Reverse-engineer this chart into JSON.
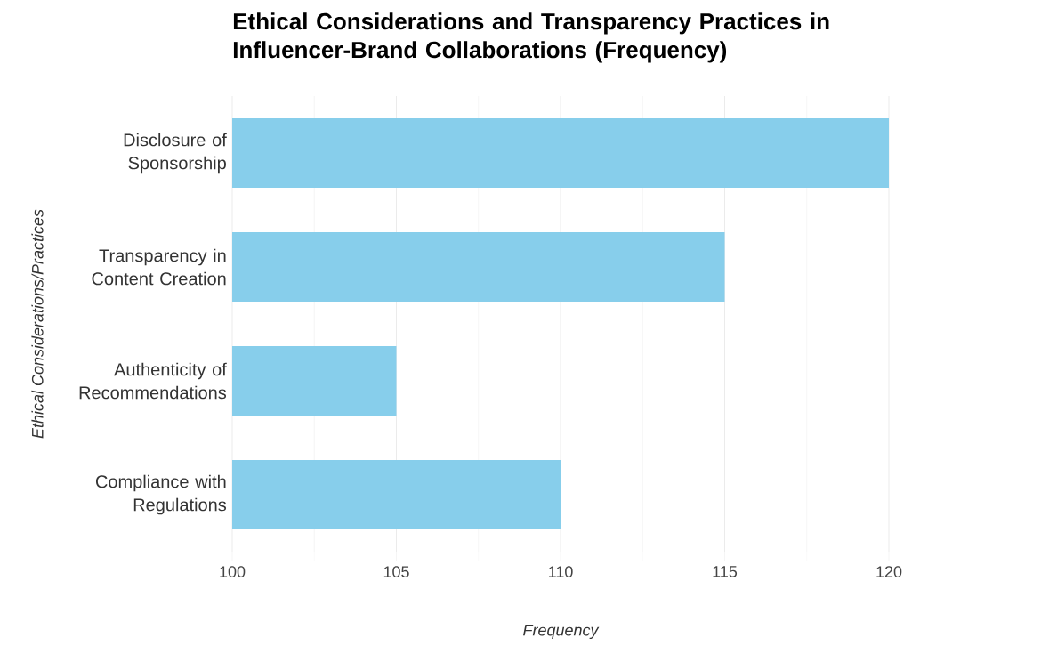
{
  "chart_data": {
    "type": "bar",
    "orientation": "horizontal",
    "title": "Ethical Considerations and Transparency Practices in Influencer-Brand Collaborations (Frequency)",
    "xlabel": "Frequency",
    "ylabel": "Ethical Considerations/Practices",
    "categories": [
      "Disclosure of Sponsorship",
      "Transparency in Content Creation",
      "Authenticity of Recommendations",
      "Compliance with Regulations"
    ],
    "values": [
      120,
      115,
      105,
      110
    ],
    "color": "#87ceeb",
    "xlim": [
      100,
      120
    ],
    "xticks": [
      100,
      {
        "value": 102.5,
        "label": null
      },
      105,
      {
        "value": 107.5,
        "label": null
      },
      110,
      {
        "value": 112.5,
        "label": null
      },
      115,
      {
        "value": 117.5,
        "label": null
      },
      120
    ],
    "grid": "x"
  }
}
